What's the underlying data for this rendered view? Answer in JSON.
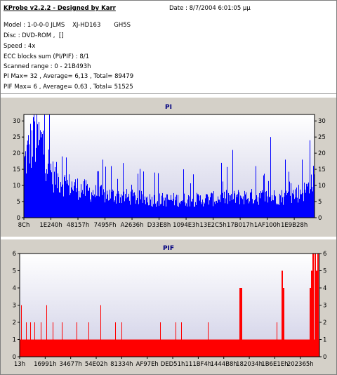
{
  "info": {
    "title": "KProbe v2.2.2 - Designed by Karr",
    "date": "Date : 8/7/2004 6:01:05 μμ",
    "model": "Model : 1-0-0-0 JLMS    XJ-HD163       GH5S",
    "disc": "Disc : DVD-ROM ,  []",
    "speed": "Speed : 4x",
    "ecc": "ECC blocks sum (PI/PIF) : 8/1",
    "range": "Scanned range : 0 - 21B493h",
    "pi_stats": "PI Max= 32 , Average= 6,13 , Total= 89479",
    "pif_stats": "PIF Max= 6 , Average= 0,63 , Total= 51525"
  },
  "colors": {
    "pi_bars": "#0000ff",
    "pif_bars": "#ff0000",
    "plot_bg_top": "#ffffff",
    "plot_bg_bottom": "#cfcfe6"
  },
  "chart_data": [
    {
      "type": "bar",
      "title": "PI",
      "ylim": [
        0,
        32
      ],
      "y_ticks": [
        0,
        5,
        10,
        15,
        20,
        25,
        30
      ],
      "x_tick_labels": [
        "8Ch",
        "1E240h",
        "48157h",
        "7495Fh",
        "A2636h",
        "D33E8h",
        "1094E3h",
        "13E2C5h",
        "17B017h",
        "1AF100h",
        "1E9B28h"
      ],
      "max": 32,
      "average": 6.13,
      "total": 89479,
      "profile": [
        {
          "x": 0.0,
          "y": 18
        },
        {
          "x": 0.02,
          "y": 24
        },
        {
          "x": 0.04,
          "y": 26
        },
        {
          "x": 0.06,
          "y": 25
        },
        {
          "x": 0.08,
          "y": 19
        },
        {
          "x": 0.1,
          "y": 14
        },
        {
          "x": 0.15,
          "y": 11
        },
        {
          "x": 0.25,
          "y": 8
        },
        {
          "x": 0.45,
          "y": 6
        },
        {
          "x": 0.6,
          "y": 6
        },
        {
          "x": 0.75,
          "y": 7
        },
        {
          "x": 0.9,
          "y": 7
        },
        {
          "x": 0.97,
          "y": 9
        },
        {
          "x": 1.0,
          "y": 13
        }
      ],
      "peaks": [
        {
          "x": 0.035,
          "y": 32
        },
        {
          "x": 0.045,
          "y": 29
        },
        {
          "x": 0.065,
          "y": 27
        },
        {
          "x": 0.13,
          "y": 19
        },
        {
          "x": 0.27,
          "y": 18
        },
        {
          "x": 0.3,
          "y": 16
        },
        {
          "x": 0.45,
          "y": 14
        },
        {
          "x": 0.55,
          "y": 15
        },
        {
          "x": 0.68,
          "y": 17
        },
        {
          "x": 0.72,
          "y": 21
        },
        {
          "x": 0.8,
          "y": 16
        },
        {
          "x": 0.85,
          "y": 25
        },
        {
          "x": 0.9,
          "y": 18
        },
        {
          "x": 0.96,
          "y": 18
        },
        {
          "x": 0.985,
          "y": 24
        }
      ]
    },
    {
      "type": "bar",
      "title": "PIF",
      "ylim": [
        0,
        6
      ],
      "y_ticks": [
        0,
        1,
        2,
        3,
        4,
        5,
        6
      ],
      "x_tick_labels": [
        "13h",
        "16991h",
        "34677h",
        "54E02h",
        "81334h",
        "AF97Eh",
        "DED51h",
        "111BF4h",
        "1444B8h",
        "182034h",
        "1B6E1Eh",
        "202365h"
      ],
      "max": 6,
      "average": 0.63,
      "total": 51525,
      "base_level": 1,
      "spikes": [
        {
          "x": 0.005,
          "y": 3
        },
        {
          "x": 0.02,
          "y": 2
        },
        {
          "x": 0.035,
          "y": 2
        },
        {
          "x": 0.05,
          "y": 2
        },
        {
          "x": 0.07,
          "y": 2
        },
        {
          "x": 0.09,
          "y": 3
        },
        {
          "x": 0.11,
          "y": 2
        },
        {
          "x": 0.14,
          "y": 2
        },
        {
          "x": 0.19,
          "y": 2
        },
        {
          "x": 0.23,
          "y": 2
        },
        {
          "x": 0.27,
          "y": 3
        },
        {
          "x": 0.32,
          "y": 2
        },
        {
          "x": 0.34,
          "y": 2
        },
        {
          "x": 0.47,
          "y": 2
        },
        {
          "x": 0.52,
          "y": 2
        },
        {
          "x": 0.54,
          "y": 2
        },
        {
          "x": 0.63,
          "y": 2
        },
        {
          "x": 0.735,
          "y": 4
        },
        {
          "x": 0.74,
          "y": 4
        },
        {
          "x": 0.86,
          "y": 2
        },
        {
          "x": 0.875,
          "y": 5
        },
        {
          "x": 0.88,
          "y": 4
        },
        {
          "x": 0.97,
          "y": 4
        },
        {
          "x": 0.975,
          "y": 5
        },
        {
          "x": 0.98,
          "y": 6
        },
        {
          "x": 0.985,
          "y": 6
        },
        {
          "x": 0.99,
          "y": 5
        },
        {
          "x": 0.995,
          "y": 6
        }
      ]
    }
  ]
}
